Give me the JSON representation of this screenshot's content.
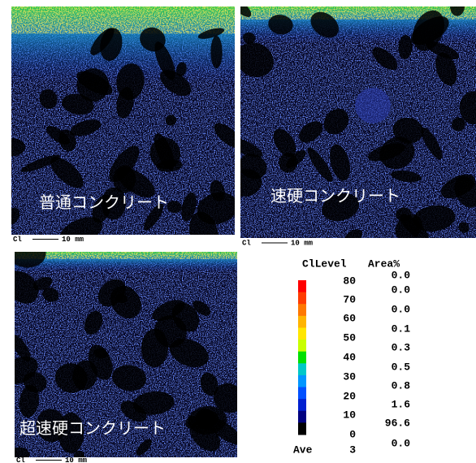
{
  "panels": [
    {
      "label": "普通コンクリート",
      "element": "Cl",
      "scale": "10 mm"
    },
    {
      "label": "速硬コンクリート",
      "element": "Cl",
      "scale": "10 mm"
    },
    {
      "label": "超速硬コンクリート",
      "element": "Cl",
      "scale": "10 mm"
    }
  ],
  "legend": {
    "header_level": "ClLevel",
    "header_area": "Area%",
    "levels": [
      "80",
      "70",
      "60",
      "50",
      "40",
      "30",
      "20",
      "10",
      "0"
    ],
    "areas": [
      "0.0",
      "0.0",
      "0.0",
      "0.1",
      "0.3",
      "0.5",
      "0.8",
      "1.6",
      "96.6",
      "0.0"
    ],
    "average_label": "Ave",
    "average_value": "3"
  }
}
